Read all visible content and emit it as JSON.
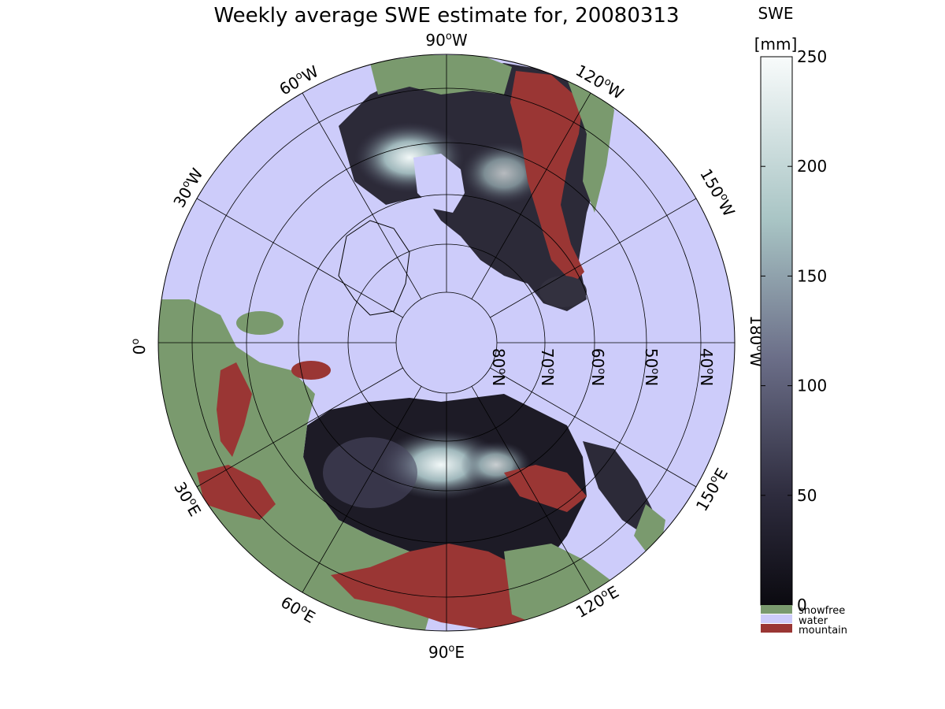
{
  "title": "Weekly average SWE estimate for, 20080313",
  "colorbar": {
    "label_line1": "SWE",
    "label_line2": "[mm]",
    "ticks": [
      "250",
      "200",
      "150",
      "100",
      "50",
      "0"
    ],
    "tick_values": [
      250,
      200,
      150,
      100,
      50,
      0
    ],
    "range": [
      0,
      250
    ],
    "legend": [
      {
        "label": "snowfree",
        "color": "#7a9a6e"
      },
      {
        "label": "water",
        "color": "#cdccfa"
      },
      {
        "label": "mountain",
        "color": "#9a3634"
      }
    ]
  },
  "map": {
    "projection": "north polar stereographic",
    "longitude_labels": [
      {
        "sup": "o",
        "main": "90",
        "hemi": "W"
      },
      {
        "sup": "o",
        "main": "60",
        "hemi": "W"
      },
      {
        "sup": "o",
        "main": "30",
        "hemi": "W"
      },
      {
        "sup": "o",
        "main": "0",
        "hemi": ""
      },
      {
        "sup": "o",
        "main": "120",
        "hemi": "W"
      },
      {
        "sup": "o",
        "main": "150",
        "hemi": "W"
      },
      {
        "sup": "o",
        "main": "180",
        "hemi": "W"
      },
      {
        "sup": "o",
        "main": "150",
        "hemi": "E"
      },
      {
        "sup": "o",
        "main": "120",
        "hemi": "E"
      },
      {
        "sup": "o",
        "main": "90",
        "hemi": "E"
      },
      {
        "sup": "o",
        "main": "60",
        "hemi": "E"
      },
      {
        "sup": "o",
        "main": "30",
        "hemi": "E"
      }
    ],
    "latitude_labels": [
      "40",
      "50",
      "60",
      "70",
      "80"
    ],
    "latitude_suffix": "N",
    "colors": {
      "water": "#cdccfa",
      "snowfree": "#7a9a6e",
      "mountain": "#9a3634",
      "snow_low": "#0f0d14",
      "snow_high": "#f7fbfb"
    }
  }
}
